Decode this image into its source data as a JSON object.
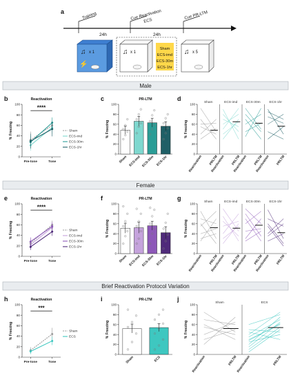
{
  "figure": {
    "panel_letters": [
      "a",
      "b",
      "c",
      "d",
      "e",
      "f",
      "g",
      "h",
      "i",
      "j"
    ],
    "sections": {
      "male": "Male",
      "female": "Female",
      "brief": "Brief Reactivation Protocol Variation"
    }
  },
  "protocol": {
    "steps": [
      "Training",
      "Cue Reactivation",
      "ECS",
      "Cue PR-LTM"
    ],
    "intervals": [
      "24h",
      "24h"
    ],
    "groups": [
      "Sham",
      "ECS-imd",
      "ECS-30m",
      "ECS-1hr"
    ],
    "counts": [
      "x 1",
      "x 1",
      "x 5"
    ]
  },
  "labels": {
    "reactivation": "Reactivation",
    "prltm": "PR-LTM",
    "y": "% Freezing",
    "pretone": "Pre-tone",
    "tone": "Tone",
    "x_reactivation": "Reactivation",
    "x_prltm": "PRLTM"
  },
  "colors": {
    "Sham": "#9a9a9a",
    "ECS-imd": "#7fd8cf",
    "ECS-30m": "#2a9d96",
    "ECS-1hr": "#1f5f66",
    "F_Sham": "#9a9a9a",
    "F_ECS-imd": "#c5a3dc",
    "F_ECS-30m": "#8d58b8",
    "F_ECS-1hr": "#4f2a7a",
    "ECS": "#3ec7c0"
  },
  "chart_data": [
    {
      "id": "b",
      "type": "line",
      "title": "Reactivation",
      "ylabel": "% Freezing",
      "categories": [
        "Pre-tone",
        "Tone"
      ],
      "ylim": [
        0,
        100
      ],
      "yticks": [
        0,
        20,
        40,
        60,
        80,
        100
      ],
      "significance": "****",
      "series": [
        {
          "name": "Sham",
          "values": [
            32,
            60
          ],
          "errors": [
            16,
            10
          ]
        },
        {
          "name": "ECS-imd",
          "values": [
            22,
            56
          ],
          "errors": [
            10,
            12
          ]
        },
        {
          "name": "ECS-30m",
          "values": [
            28,
            65
          ],
          "errors": [
            12,
            10
          ]
        },
        {
          "name": "ECS-1hr",
          "values": [
            30,
            53
          ],
          "errors": [
            14,
            14
          ]
        }
      ]
    },
    {
      "id": "c",
      "type": "bar",
      "title": "PR-LTM",
      "ylabel": "% Freezing",
      "categories": [
        "Sham",
        "ECS-imd",
        "ECS-30m",
        "ECS-1hr"
      ],
      "ylim": [
        0,
        100
      ],
      "yticks": [
        0,
        20,
        40,
        60,
        80,
        100
      ],
      "values": [
        48,
        66,
        63,
        56
      ],
      "errors": [
        8,
        10,
        9,
        9
      ],
      "points": [
        [
          30,
          38,
          45,
          50,
          58,
          70
        ],
        [
          42,
          55,
          62,
          70,
          80,
          90
        ],
        [
          40,
          50,
          58,
          66,
          78,
          88
        ],
        [
          30,
          42,
          52,
          62,
          72,
          80
        ]
      ]
    },
    {
      "id": "d",
      "type": "line",
      "ylabel": "% Freezing",
      "groups": [
        "Sham",
        "ECS-imd",
        "ECS-30m",
        "ECS-1hr"
      ],
      "categories": [
        "Reactivation",
        "PRLTM"
      ],
      "ylim": [
        0,
        100
      ],
      "yticks": [
        0,
        20,
        40,
        60,
        80,
        100
      ],
      "means": [
        48,
        65,
        62,
        56
      ],
      "pairs": [
        [
          [
            92,
            45
          ],
          [
            70,
            30
          ],
          [
            60,
            62
          ],
          [
            40,
            70
          ],
          [
            55,
            40
          ],
          [
            30,
            52
          ]
        ],
        [
          [
            90,
            30
          ],
          [
            70,
            55
          ],
          [
            60,
            80
          ],
          [
            50,
            92
          ],
          [
            40,
            65
          ],
          [
            80,
            45
          ],
          [
            30,
            70
          ]
        ],
        [
          [
            92,
            50
          ],
          [
            70,
            30
          ],
          [
            60,
            80
          ],
          [
            45,
            62
          ],
          [
            35,
            92
          ],
          [
            80,
            45
          ]
        ],
        [
          [
            90,
            40
          ],
          [
            60,
            80
          ],
          [
            45,
            30
          ],
          [
            75,
            62
          ],
          [
            30,
            55
          ],
          [
            85,
            70
          ]
        ]
      ]
    },
    {
      "id": "e",
      "type": "line",
      "title": "Reactivation",
      "ylabel": "% Freezing",
      "categories": [
        "Pre-tone",
        "Tone"
      ],
      "ylim": [
        0,
        100
      ],
      "yticks": [
        0,
        20,
        40,
        60,
        80,
        100
      ],
      "significance": "****",
      "series": [
        {
          "name": "Sham",
          "values": [
            25,
            60
          ],
          "errors": [
            8,
            8
          ]
        },
        {
          "name": "ECS-imd",
          "values": [
            22,
            55
          ],
          "errors": [
            8,
            8
          ]
        },
        {
          "name": "ECS-30m",
          "values": [
            28,
            57
          ],
          "errors": [
            8,
            8
          ]
        },
        {
          "name": "ECS-1hr",
          "values": [
            18,
            47
          ],
          "errors": [
            6,
            8
          ]
        }
      ]
    },
    {
      "id": "f",
      "type": "bar",
      "title": "PR-LTM",
      "ylabel": "% Freezing",
      "categories": [
        "Sham",
        "ECS-imd",
        "ECS-30m",
        "ECS-1hr"
      ],
      "ylim": [
        0,
        100
      ],
      "yticks": [
        0,
        20,
        40,
        60,
        80,
        100
      ],
      "values": [
        51,
        52,
        56,
        42
      ],
      "errors": [
        10,
        11,
        9,
        12
      ],
      "points": [
        [
          20,
          35,
          45,
          55,
          65,
          80,
          95
        ],
        [
          20,
          30,
          45,
          55,
          65,
          80,
          90
        ],
        [
          20,
          40,
          50,
          60,
          75,
          88,
          92
        ],
        [
          10,
          25,
          38,
          50,
          62,
          80
        ]
      ]
    },
    {
      "id": "g",
      "type": "line",
      "ylabel": "% Freezing",
      "groups": [
        "Sham",
        "ECS-imd",
        "ECS-30m",
        "ECS-1hr"
      ],
      "categories": [
        "Reactivation",
        "PRLTM"
      ],
      "ylim": [
        0,
        100
      ],
      "yticks": [
        0,
        20,
        40,
        60,
        80,
        100
      ],
      "means": [
        52,
        51,
        57,
        42
      ],
      "pairs": [
        [
          [
            85,
            30
          ],
          [
            70,
            60
          ],
          [
            55,
            85
          ],
          [
            40,
            50
          ],
          [
            25,
            70
          ],
          [
            60,
            20
          ],
          [
            30,
            40
          ]
        ],
        [
          [
            90,
            45
          ],
          [
            75,
            25
          ],
          [
            55,
            65
          ],
          [
            40,
            80
          ],
          [
            30,
            55
          ],
          [
            65,
            35
          ],
          [
            20,
            60
          ]
        ],
        [
          [
            90,
            60
          ],
          [
            80,
            35
          ],
          [
            60,
            85
          ],
          [
            45,
            50
          ],
          [
            30,
            70
          ],
          [
            70,
            25
          ],
          [
            25,
            45
          ]
        ],
        [
          [
            88,
            30
          ],
          [
            70,
            55
          ],
          [
            55,
            15
          ],
          [
            40,
            70
          ],
          [
            25,
            40
          ],
          [
            60,
            20
          ],
          [
            35,
            60
          ]
        ]
      ]
    },
    {
      "id": "h",
      "type": "line",
      "title": "Reactivation",
      "ylabel": "% Freezing",
      "categories": [
        "Pre-tone",
        "Tone"
      ],
      "ylim": [
        0,
        100
      ],
      "yticks": [
        0,
        20,
        40,
        60,
        80,
        100
      ],
      "significance": "***",
      "series": [
        {
          "name": "Sham",
          "values": [
            13,
            44
          ],
          "errors": [
            6,
            12
          ]
        },
        {
          "name": "ECS",
          "values": [
            11,
            31
          ],
          "errors": [
            5,
            8
          ]
        }
      ]
    },
    {
      "id": "i",
      "type": "bar",
      "title": "PR-LTM",
      "ylabel": "% Freezing",
      "categories": [
        "Sham",
        "ECS"
      ],
      "ylim": [
        0,
        100
      ],
      "yticks": [
        0,
        20,
        40,
        60,
        80,
        100
      ],
      "values": [
        52,
        54
      ],
      "errors": [
        9,
        8
      ],
      "points": [
        [
          10,
          25,
          42,
          55,
          65,
          78,
          90
        ],
        [
          10,
          18,
          30,
          42,
          52,
          62,
          70,
          80,
          90
        ]
      ]
    },
    {
      "id": "j",
      "type": "line",
      "ylabel": "% Freezing",
      "groups": [
        "Sham",
        "ECS"
      ],
      "categories": [
        "Reactivation",
        "PRLTM"
      ],
      "ylim": [
        0,
        100
      ],
      "yticks": [
        0,
        20,
        40,
        60,
        80,
        100
      ],
      "means": [
        52,
        54
      ],
      "pairs": [
        [
          [
            85,
            45
          ],
          [
            70,
            60
          ],
          [
            60,
            30
          ],
          [
            40,
            65
          ],
          [
            30,
            50
          ],
          [
            20,
            75
          ],
          [
            55,
            40
          ]
        ],
        [
          [
            40,
            85
          ],
          [
            30,
            60
          ],
          [
            20,
            75
          ],
          [
            50,
            45
          ],
          [
            10,
            55
          ],
          [
            35,
            70
          ],
          [
            25,
            40
          ],
          [
            15,
            65
          ],
          [
            45,
            30
          ],
          [
            5,
            50
          ],
          [
            60,
            80
          ],
          [
            28,
            62
          ]
        ]
      ]
    }
  ]
}
